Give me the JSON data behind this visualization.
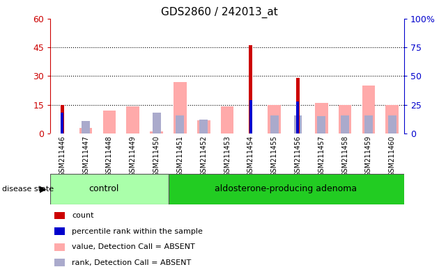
{
  "title": "GDS2860 / 242013_at",
  "samples": [
    "GSM211446",
    "GSM211447",
    "GSM211448",
    "GSM211449",
    "GSM211450",
    "GSM211451",
    "GSM211452",
    "GSM211453",
    "GSM211454",
    "GSM211455",
    "GSM211456",
    "GSM211457",
    "GSM211458",
    "GSM211459",
    "GSM211460"
  ],
  "count": [
    15,
    0,
    0,
    0,
    0,
    0,
    0,
    0,
    46,
    0,
    29,
    0,
    0,
    0,
    0
  ],
  "percentile": [
    18,
    0,
    0,
    0,
    0,
    0,
    0,
    0,
    29,
    0,
    28,
    0,
    0,
    0,
    0
  ],
  "value_absent": [
    0,
    3,
    12,
    14,
    1,
    27,
    7,
    14,
    0,
    15,
    0,
    16,
    15,
    25,
    15
  ],
  "rank_absent": [
    0,
    11,
    0,
    0,
    18,
    16,
    12,
    0,
    0,
    16,
    16,
    15,
    16,
    16,
    16
  ],
  "n_control": 5,
  "n_total": 15,
  "left_ylim": [
    0,
    60
  ],
  "right_ylim": [
    0,
    100
  ],
  "left_yticks": [
    0,
    15,
    30,
    45,
    60
  ],
  "right_yticks": [
    0,
    25,
    50,
    75,
    100
  ],
  "left_ytick_labels": [
    "0",
    "15",
    "30",
    "45",
    "60"
  ],
  "right_ytick_labels": [
    "0",
    "25",
    "50",
    "75",
    "100%"
  ],
  "left_color": "#cc0000",
  "right_color": "#0000cc",
  "count_color": "#cc0000",
  "percentile_color": "#0000cc",
  "value_absent_color": "#ffaaaa",
  "rank_absent_color": "#aaaacc",
  "plot_bg_color": "#ffffff",
  "label_bg_color": "#cccccc",
  "control_color_light": "#aaffaa",
  "control_color_dark": "#55dd55",
  "adenoma_color": "#22cc22",
  "control_label": "control",
  "adenoma_label": "aldosterone-producing adenoma",
  "disease_state_label": "disease state",
  "legend_items": [
    "count",
    "percentile rank within the sample",
    "value, Detection Call = ABSENT",
    "rank, Detection Call = ABSENT"
  ]
}
